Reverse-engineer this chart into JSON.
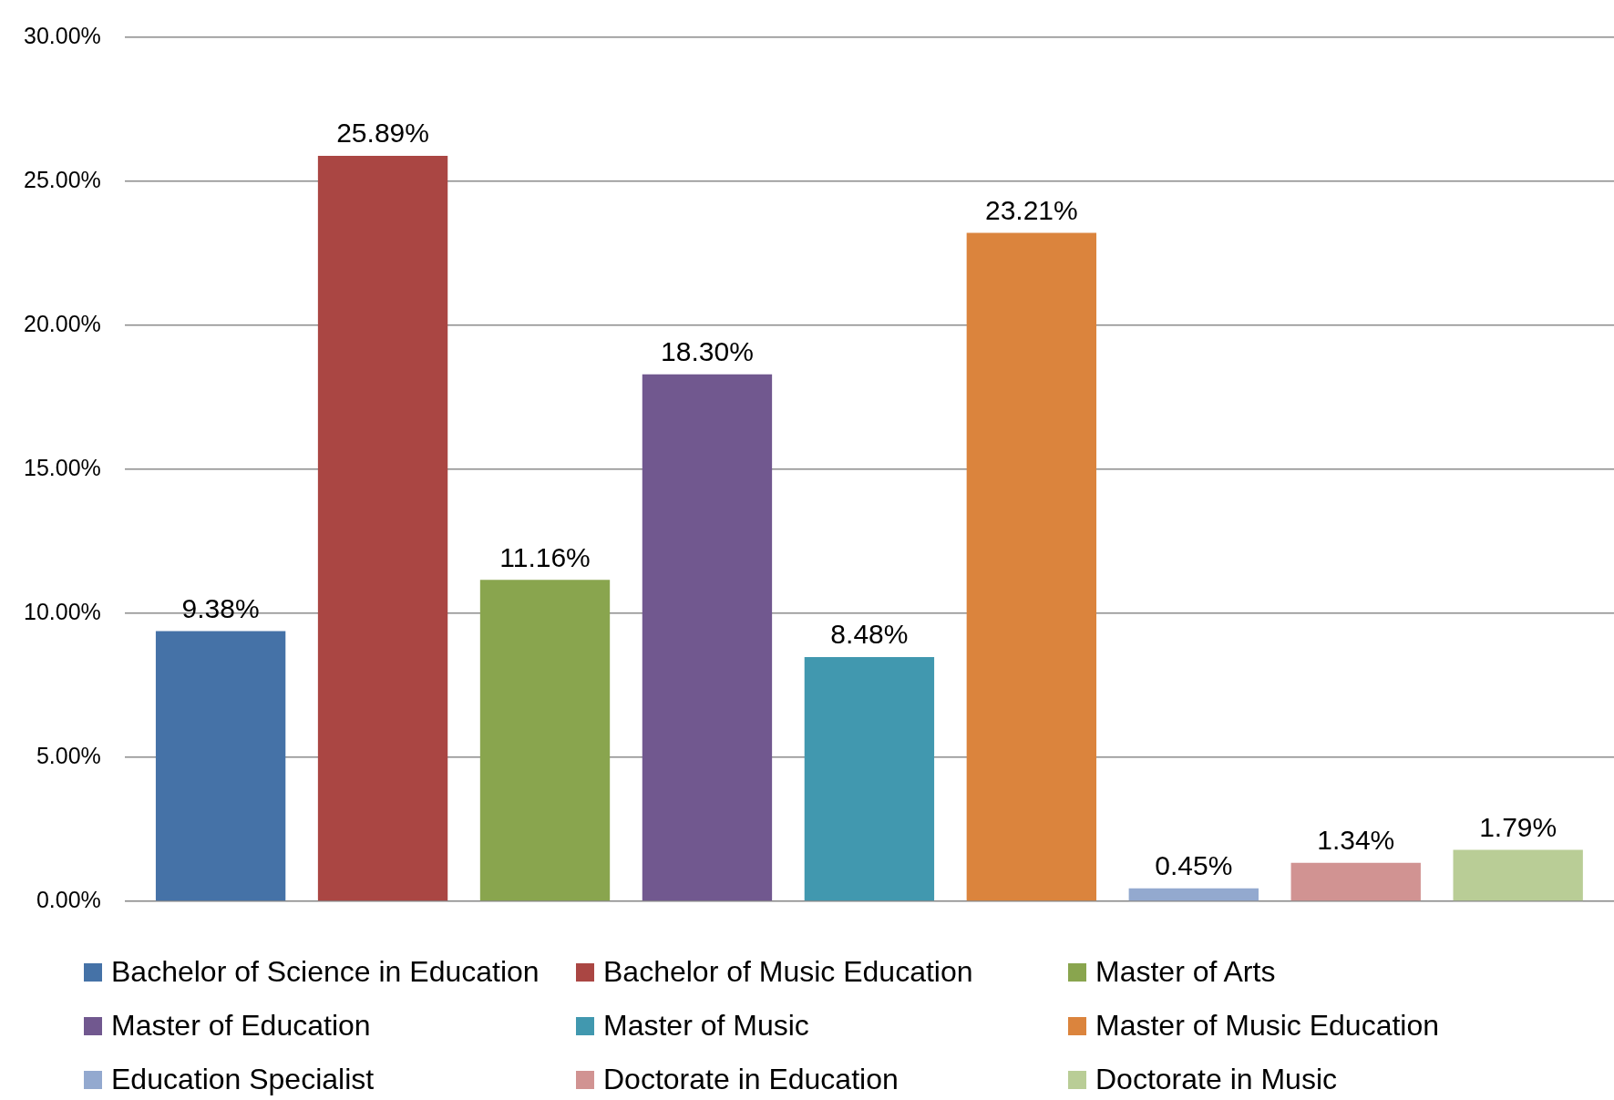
{
  "chart_data": {
    "type": "bar",
    "categories": [
      null
    ],
    "series": [
      {
        "name": "Bachelor of Science in Education",
        "color": "#4572a7",
        "values": [
          9.38
        ],
        "value_labels": [
          "9.38%"
        ]
      },
      {
        "name": "Bachelor of Music Education",
        "color": "#aa4643",
        "values": [
          25.89
        ],
        "value_labels": [
          "25.89%"
        ]
      },
      {
        "name": "Master of Arts",
        "color": "#89a54e",
        "values": [
          11.16
        ],
        "value_labels": [
          "11.16%"
        ]
      },
      {
        "name": "Master of Education",
        "color": "#71588f",
        "values": [
          18.3
        ],
        "value_labels": [
          "18.30%"
        ]
      },
      {
        "name": "Master of Music",
        "color": "#4198af",
        "values": [
          8.48
        ],
        "value_labels": [
          "8.48%"
        ]
      },
      {
        "name": "Master of Music Education",
        "color": "#db843d",
        "values": [
          23.21
        ],
        "value_labels": [
          "23.21%"
        ]
      },
      {
        "name": "Education Specialist",
        "color": "#93a9cf",
        "values": [
          0.45
        ],
        "value_labels": [
          "0.45%"
        ]
      },
      {
        "name": "Doctorate in Education",
        "color": "#d19392",
        "values": [
          1.34
        ],
        "value_labels": [
          "1.34%"
        ]
      },
      {
        "name": "Doctorate in Music",
        "color": "#b9cd96",
        "values": [
          1.79
        ],
        "value_labels": [
          "1.79%"
        ]
      }
    ],
    "ylim": [
      0,
      30
    ],
    "yticks": [
      {
        "value": 0,
        "label": "0.00%"
      },
      {
        "value": 5,
        "label": "5.00%"
      },
      {
        "value": 10,
        "label": "10.00%"
      },
      {
        "value": 15,
        "label": "15.00%"
      },
      {
        "value": 20,
        "label": "20.00%"
      },
      {
        "value": 25,
        "label": "25.00%"
      },
      {
        "value": 30,
        "label": "30.00%"
      }
    ],
    "grid": "y",
    "legend": "bottom"
  }
}
